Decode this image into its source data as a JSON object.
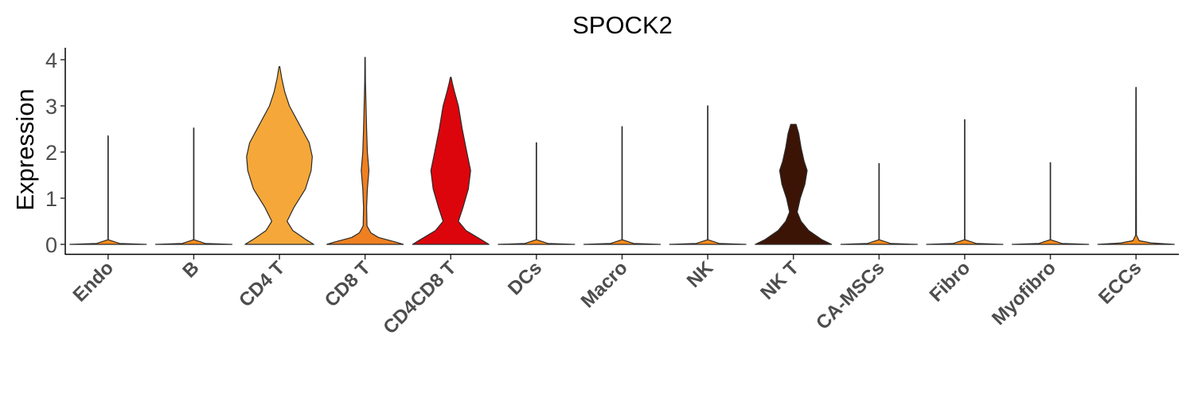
{
  "chart_data": {
    "type": "violin",
    "title": "SPOCK2",
    "xlabel": "",
    "ylabel": "Expression",
    "ylim": [
      -0.2,
      4.25
    ],
    "yticks": [
      "0",
      "1",
      "2",
      "3",
      "4"
    ],
    "grid": false,
    "legend": "none",
    "categories": [
      "Endo",
      "B",
      "CD4 T",
      "CD8 T",
      "CD4CD8 T",
      "DCs",
      "Macro",
      "NK",
      "NK T",
      "CA-MSCs",
      "Fibro",
      "Myofibro",
      "ECCs"
    ],
    "colors": [
      "#ff8c1a",
      "#ff8c1a",
      "#f5a839",
      "#ef8021",
      "#dd050c",
      "#ff8c1a",
      "#ff8c1a",
      "#ff8c1a",
      "#3b1406",
      "#ff8c1a",
      "#ff8c1a",
      "#ff8c1a",
      "#ff8c1a"
    ],
    "series": [
      {
        "category": "Endo",
        "max": 2.35,
        "profile": [
          [
            0,
            1.0
          ],
          [
            0.02,
            0.3
          ],
          [
            0.1,
            0.005
          ],
          [
            2.35,
            0.005
          ]
        ]
      },
      {
        "category": "B",
        "max": 2.52,
        "profile": [
          [
            0,
            1.0
          ],
          [
            0.02,
            0.3
          ],
          [
            0.1,
            0.005
          ],
          [
            2.52,
            0.005
          ]
        ]
      },
      {
        "category": "CD4 T",
        "max": 3.85,
        "profile": [
          [
            0,
            0.9
          ],
          [
            0.1,
            0.7
          ],
          [
            0.3,
            0.35
          ],
          [
            0.5,
            0.2
          ],
          [
            0.8,
            0.38
          ],
          [
            1.2,
            0.68
          ],
          [
            1.6,
            0.83
          ],
          [
            1.9,
            0.86
          ],
          [
            2.2,
            0.78
          ],
          [
            2.6,
            0.52
          ],
          [
            3.0,
            0.26
          ],
          [
            3.3,
            0.14
          ],
          [
            3.6,
            0.06
          ],
          [
            3.85,
            0.01
          ]
        ]
      },
      {
        "category": "CD8 T",
        "max": 4.05,
        "profile": [
          [
            0,
            1.0
          ],
          [
            0.05,
            0.8
          ],
          [
            0.15,
            0.35
          ],
          [
            0.25,
            0.15
          ],
          [
            0.4,
            0.05
          ],
          [
            0.8,
            0.04
          ],
          [
            1.2,
            0.06
          ],
          [
            1.6,
            0.1
          ],
          [
            2.0,
            0.06
          ],
          [
            2.5,
            0.04
          ],
          [
            3.0,
            0.025
          ],
          [
            3.5,
            0.01
          ],
          [
            4.05,
            0.005
          ]
        ]
      },
      {
        "category": "CD4CD8 T",
        "max": 3.62,
        "profile": [
          [
            0,
            1.0
          ],
          [
            0.1,
            0.8
          ],
          [
            0.3,
            0.4
          ],
          [
            0.5,
            0.2
          ],
          [
            0.8,
            0.32
          ],
          [
            1.2,
            0.46
          ],
          [
            1.6,
            0.52
          ],
          [
            2.0,
            0.42
          ],
          [
            2.5,
            0.3
          ],
          [
            3.0,
            0.2
          ],
          [
            3.3,
            0.1
          ],
          [
            3.5,
            0.04
          ],
          [
            3.62,
            0.01
          ]
        ]
      },
      {
        "category": "DCs",
        "max": 2.2,
        "profile": [
          [
            0,
            1.0
          ],
          [
            0.02,
            0.3
          ],
          [
            0.1,
            0.005
          ],
          [
            2.2,
            0.005
          ]
        ]
      },
      {
        "category": "Macro",
        "max": 2.55,
        "profile": [
          [
            0,
            1.0
          ],
          [
            0.02,
            0.3
          ],
          [
            0.1,
            0.005
          ],
          [
            2.55,
            0.005
          ]
        ]
      },
      {
        "category": "NK",
        "max": 3.0,
        "profile": [
          [
            0,
            1.0
          ],
          [
            0.02,
            0.3
          ],
          [
            0.1,
            0.005
          ],
          [
            3.0,
            0.005
          ]
        ]
      },
      {
        "category": "NK T",
        "max": 2.6,
        "profile": [
          [
            0,
            1.0
          ],
          [
            0.1,
            0.75
          ],
          [
            0.3,
            0.4
          ],
          [
            0.5,
            0.2
          ],
          [
            0.7,
            0.1
          ],
          [
            1.0,
            0.18
          ],
          [
            1.3,
            0.3
          ],
          [
            1.6,
            0.36
          ],
          [
            1.8,
            0.28
          ],
          [
            2.1,
            0.2
          ],
          [
            2.4,
            0.14
          ],
          [
            2.6,
            0.07
          ]
        ]
      },
      {
        "category": "CA-MSCs",
        "max": 1.75,
        "profile": [
          [
            0,
            1.0
          ],
          [
            0.02,
            0.3
          ],
          [
            0.1,
            0.005
          ],
          [
            1.75,
            0.005
          ]
        ]
      },
      {
        "category": "Fibro",
        "max": 2.7,
        "profile": [
          [
            0,
            1.0
          ],
          [
            0.02,
            0.3
          ],
          [
            0.1,
            0.005
          ],
          [
            2.7,
            0.005
          ]
        ]
      },
      {
        "category": "Myofibro",
        "max": 1.77,
        "profile": [
          [
            0,
            1.0
          ],
          [
            0.02,
            0.3
          ],
          [
            0.1,
            0.005
          ],
          [
            1.77,
            0.005
          ]
        ]
      },
      {
        "category": "ECCs",
        "max": 3.4,
        "profile": [
          [
            0,
            1.0
          ],
          [
            0.03,
            0.4
          ],
          [
            0.08,
            0.08
          ],
          [
            0.2,
            0.01
          ],
          [
            3.4,
            0.005
          ]
        ]
      }
    ]
  }
}
